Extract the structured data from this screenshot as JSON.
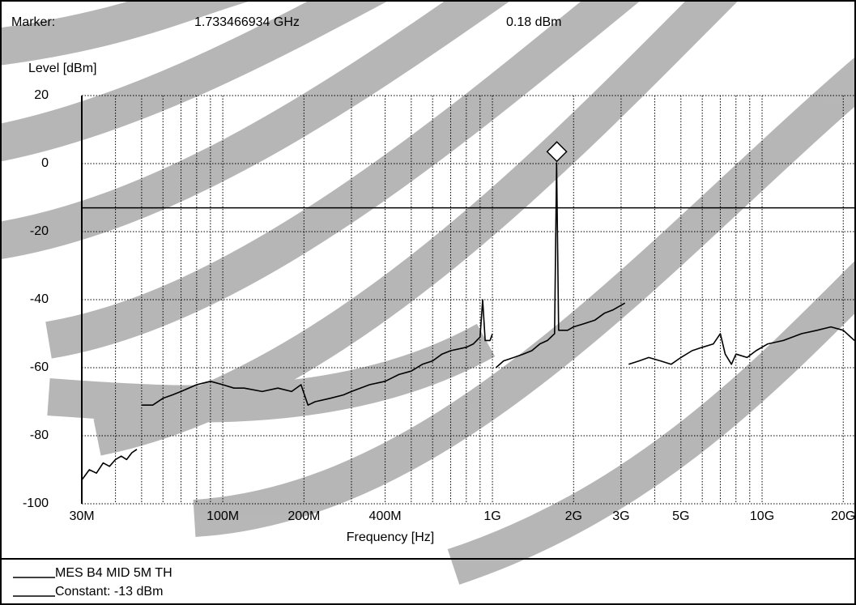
{
  "chart_data": {
    "type": "line",
    "marker_label": "Marker:",
    "marker_frequency": {
      "value": 1733466934,
      "label": "1.733466934 GHz"
    },
    "marker_level": {
      "value": 0.18,
      "label": "0.18 dBm"
    },
    "y_label": "Level [dBm]",
    "x_label": "Frequency [Hz]",
    "log_x": true,
    "grid": true,
    "xlim": [
      30000000,
      22300000000
    ],
    "ylim": [
      -100,
      20
    ],
    "yticks": [
      20,
      0,
      -20,
      -40,
      -60,
      -80,
      -100
    ],
    "xticks": [
      {
        "value": 30000000,
        "label": "30M"
      },
      {
        "value": 100000000,
        "label": "100M"
      },
      {
        "value": 200000000,
        "label": "200M"
      },
      {
        "value": 400000000,
        "label": "400M"
      },
      {
        "value": 1000000000,
        "label": "1G"
      },
      {
        "value": 2000000000,
        "label": "2G"
      },
      {
        "value": 3000000000,
        "label": "3G"
      },
      {
        "value": 5000000000,
        "label": "5G"
      },
      {
        "value": 10000000000,
        "label": "10G"
      },
      {
        "value": 20000000000,
        "label": "20G"
      }
    ],
    "xgrid": [
      40000000,
      50000000,
      60000000,
      70000000,
      80000000,
      90000000,
      100000000,
      200000000,
      300000000,
      400000000,
      500000000,
      600000000,
      700000000,
      800000000,
      900000000,
      1000000000,
      2000000000,
      3000000000,
      4000000000,
      5000000000,
      6000000000,
      7000000000,
      8000000000,
      9000000000,
      10000000000,
      20000000000
    ],
    "limit": {
      "name": "Constant: -13 dBm",
      "value": -13
    },
    "series": [
      {
        "name": "MES B4 MID 5M TH",
        "color": "#000000",
        "x": [
          30000000,
          32000000,
          34000000,
          36000000,
          38000000,
          40000000,
          42000000,
          44000000,
          46000000,
          48000000,
          49000000,
          50000000,
          55000000,
          60000000,
          65000000,
          70000000,
          80000000,
          90000000,
          100000000,
          110000000,
          120000000,
          140000000,
          160000000,
          180000000,
          195000000,
          207000000,
          220000000,
          250000000,
          280000000,
          300000000,
          350000000,
          400000000,
          450000000,
          500000000,
          550000000,
          600000000,
          650000000,
          700000000,
          800000000,
          850000000,
          900000000,
          920000000,
          940000000,
          980000000,
          1000000000,
          1020000000,
          1030000000,
          1100000000,
          1200000000,
          1300000000,
          1400000000,
          1500000000,
          1600000000,
          1700000000,
          1730000000,
          1760000000,
          1900000000,
          2000000000,
          2200000000,
          2400000000,
          2600000000,
          2800000000,
          3100000000,
          3150000000,
          3200000000,
          3500000000,
          3800000000,
          4200000000,
          4600000000,
          5000000000,
          5500000000,
          6000000000,
          6600000000,
          7000000000,
          7300000000,
          7700000000,
          8000000000,
          8800000000,
          9500000000,
          10500000000,
          12000000000,
          14000000000,
          16000000000,
          18000000000,
          20000000000,
          22000000000
        ],
        "values": [
          -93,
          -90,
          -91,
          -88,
          -89,
          -87,
          -86,
          -87,
          -85,
          -84,
          null,
          -71,
          -71,
          -69,
          -68,
          -67,
          -65,
          -64,
          -65,
          -66,
          -66,
          -67,
          -66,
          -67,
          -65,
          -71,
          -70,
          -69,
          -68,
          -67,
          -65,
          -64,
          -62,
          -61,
          -59,
          -58,
          -56,
          -55,
          -54,
          -53,
          -51,
          -40,
          -52,
          -52,
          -50,
          null,
          -60,
          -58,
          -57,
          -56,
          -55,
          -53,
          -52,
          -50,
          0.18,
          -49,
          -49,
          -48,
          -47,
          -46,
          -44,
          -43,
          -41,
          null,
          -59,
          -58,
          -57,
          -58,
          -59,
          -57,
          -55,
          -54,
          -53,
          -50,
          -56,
          -59,
          -56,
          -57,
          -55,
          -53,
          -52,
          -50,
          -49,
          -48,
          -49,
          -52
        ]
      }
    ]
  }
}
